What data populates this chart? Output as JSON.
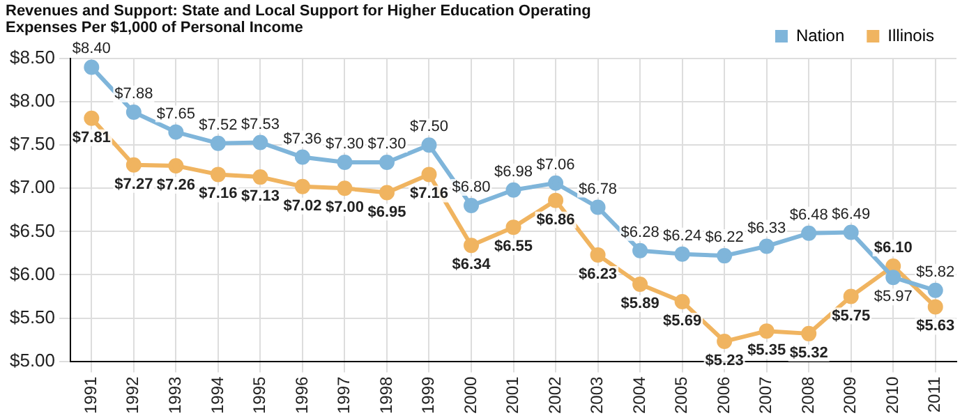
{
  "chart_data": {
    "type": "line",
    "title": "Revenues and Support: State and Local Support for Higher Education Operating Expenses Per $1,000 of Personal Income",
    "categories": [
      "1991",
      "1992",
      "1993",
      "1994",
      "1995",
      "1996",
      "1997",
      "1998",
      "1999",
      "2000",
      "2001",
      "2002",
      "2003",
      "2004",
      "2005",
      "2006",
      "2007",
      "2008",
      "2009",
      "2010",
      "2011"
    ],
    "series": [
      {
        "name": "Nation",
        "color": "#7fb5da",
        "values": [
          8.4,
          7.88,
          7.65,
          7.52,
          7.53,
          7.36,
          7.3,
          7.3,
          7.5,
          6.8,
          6.98,
          7.06,
          6.78,
          6.28,
          6.24,
          6.22,
          6.33,
          6.48,
          6.49,
          5.97,
          5.82
        ],
        "value_labels": [
          "$8.40",
          "$7.88",
          "$7.65",
          "$7.52",
          "$7.53",
          "$7.36",
          "$7.30",
          "$7.30",
          "$7.50",
          "$6.80",
          "$6.98",
          "$7.06",
          "$6.78",
          "$6.28",
          "$6.24",
          "$6.22",
          "$6.33",
          "$6.48",
          "$6.49",
          "$5.97",
          "$5.82"
        ]
      },
      {
        "name": "Illinois",
        "color": "#f0b460",
        "values": [
          7.81,
          7.27,
          7.26,
          7.16,
          7.13,
          7.02,
          7.0,
          6.95,
          7.16,
          6.34,
          6.55,
          6.86,
          6.23,
          5.89,
          5.69,
          5.23,
          5.35,
          5.32,
          5.75,
          6.1,
          5.63
        ],
        "value_labels": [
          "$7.81",
          "$7.27",
          "$7.26",
          "$7.16",
          "$7.13",
          "$7.02",
          "$7.00",
          "$6.95",
          "$7.16",
          "$6.34",
          "$6.55",
          "$6.86",
          "$6.23",
          "$5.89",
          "$5.69",
          "$5.23",
          "$5.35",
          "$5.32",
          "$5.75",
          "$6.10",
          "$5.63"
        ]
      }
    ],
    "ylim": [
      5,
      8.5
    ],
    "yticks": [
      {
        "value": 5,
        "label": "$5.00"
      },
      {
        "value": 5.5,
        "label": "$5.50"
      },
      {
        "value": 6,
        "label": "$6.00"
      },
      {
        "value": 6.5,
        "label": "$6.50"
      },
      {
        "value": 7,
        "label": "$7.00"
      },
      {
        "value": 7.5,
        "label": "$7.50"
      },
      {
        "value": 8,
        "label": "$8.00"
      },
      {
        "value": 8.5,
        "label": "$8.50"
      }
    ],
    "grid": true,
    "legend": "top right",
    "marker": "circle",
    "line_style": "solid"
  }
}
